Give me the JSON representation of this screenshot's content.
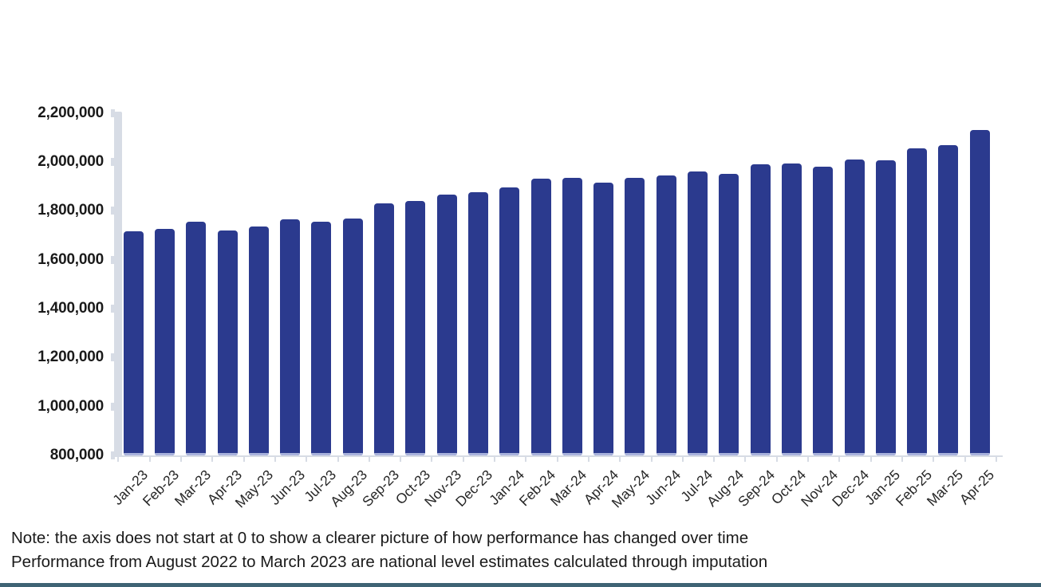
{
  "chart_data": {
    "type": "bar",
    "title": "",
    "xlabel": "",
    "ylabel": "",
    "categories": [
      "Jan-23",
      "Feb-23",
      "Mar-23",
      "Apr-23",
      "May-23",
      "Jun-23",
      "Jul-23",
      "Aug-23",
      "Sep-23",
      "Oct-23",
      "Nov-23",
      "Dec-23",
      "Jan-24",
      "Feb-24",
      "Mar-24",
      "Apr-24",
      "May-24",
      "Jun-24",
      "Jul-24",
      "Aug-24",
      "Sep-24",
      "Oct-24",
      "Nov-24",
      "Dec-24",
      "Jan-25",
      "Feb-25",
      "Mar-25",
      "Apr-25"
    ],
    "values": [
      1715000,
      1725000,
      1755000,
      1720000,
      1735000,
      1765000,
      1755000,
      1770000,
      1830000,
      1840000,
      1865000,
      1875000,
      1895000,
      1930000,
      1935000,
      1915000,
      1935000,
      1945000,
      1960000,
      1950000,
      1990000,
      1995000,
      1980000,
      2010000,
      2005000,
      2055000,
      2070000,
      2130000
    ],
    "ylim": [
      800000,
      2200000
    ],
    "ytick_step": 200000,
    "ytick_labels": [
      "800,000",
      "1,000,000",
      "1,200,000",
      "1,400,000",
      "1,600,000",
      "1,800,000",
      "2,000,000",
      "2,200,000"
    ],
    "grid": false,
    "legend_position": "none",
    "bar_color": "#2b3a8e",
    "axis_color": "#d7dce5",
    "label_color": "#1a1a1a"
  },
  "note": {
    "line1": "Note: the axis does not start at 0 to show a clearer picture of how performance has changed over time",
    "line2": "Performance from August 2022 to March 2023 are national level estimates calculated through imputation"
  },
  "footer": {
    "accent_color": "#3e6374"
  }
}
